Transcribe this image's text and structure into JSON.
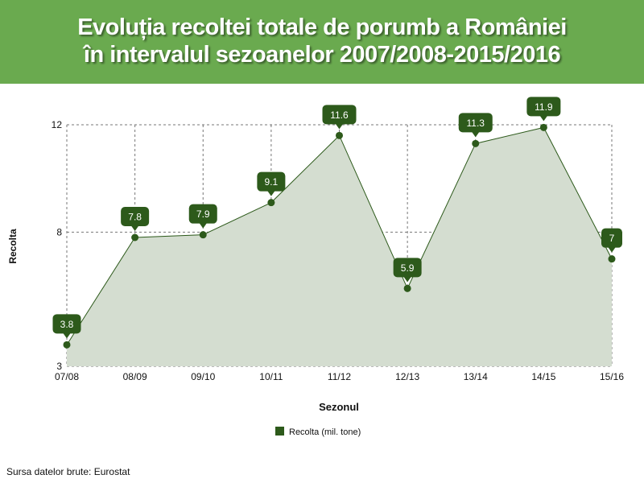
{
  "header": {
    "title_line1": "Evoluția recoltei totale de porumb a României",
    "title_line2": "în intervalul sezoanelor 2007/2008-2015/2016",
    "background": "#6aaa4f"
  },
  "chart_data": {
    "type": "area",
    "title": "Evoluția recoltei totale de porumb a României în intervalul sezoanelor 2007/2008-2015/2016",
    "xlabel": "Sezonul",
    "ylabel": "Recolta",
    "categories": [
      "07/08",
      "08/09",
      "09/10",
      "10/11",
      "11/12",
      "12/13",
      "13/14",
      "14/15",
      "15/16"
    ],
    "series": [
      {
        "name": "Recolta (mil. tone)",
        "values": [
          3.8,
          7.8,
          7.9,
          9.1,
          11.6,
          5.9,
          11.3,
          11.9,
          7
        ],
        "color": "#2d5a1b"
      }
    ],
    "data_labels": [
      "3.8",
      "7.8",
      "7.9",
      "9.1",
      "11.6",
      "5.9",
      "11.3",
      "11.9",
      "7"
    ],
    "yticks": [
      3,
      8,
      12
    ],
    "ylim": [
      3,
      12
    ],
    "grid": true,
    "legend_position": "bottom",
    "area_fill": "#d4ddd0"
  },
  "footer": {
    "source": "Sursa datelor brute: Eurostat"
  }
}
